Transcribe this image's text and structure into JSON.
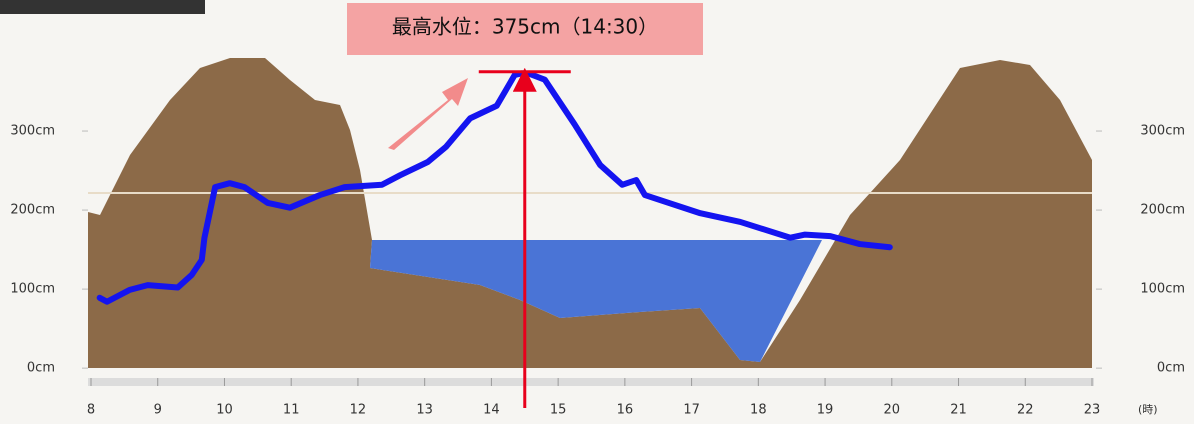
{
  "chart_data": {
    "type": "line",
    "annotation": "最高水位：375cm（14:30）",
    "x_unit_label": "(時)",
    "x": [
      8.13,
      8.24,
      8.58,
      8.85,
      9.3,
      9.51,
      9.66,
      9.7,
      9.86,
      10.08,
      10.3,
      10.65,
      10.98,
      11.43,
      11.8,
      12.36,
      12.63,
      13.05,
      13.32,
      13.68,
      14.08,
      14.35,
      14.46,
      14.58,
      14.8,
      15.25,
      15.63,
      15.96,
      16.17,
      16.3,
      17.13,
      17.73,
      18.48,
      18.7,
      19.08,
      19.52,
      19.97
    ],
    "values": [
      89,
      84,
      99,
      105,
      102,
      118,
      137,
      165,
      229,
      234,
      229,
      209,
      203,
      219,
      229,
      232,
      244,
      261,
      280,
      316,
      332,
      371,
      373,
      372,
      365,
      308,
      257,
      232,
      238,
      219,
      196,
      185,
      165,
      169,
      167,
      157,
      153
    ],
    "color": "#1414f0",
    "peak": {
      "x": 14.5,
      "y": 375,
      "color": "#e8001c"
    },
    "xlim": [
      8,
      23
    ],
    "xticks": [
      8,
      9,
      10,
      11,
      12,
      13,
      14,
      15,
      16,
      17,
      18,
      19,
      20,
      21,
      22,
      23
    ],
    "ylim": [
      -15,
      400
    ],
    "yticks": [
      {
        "value": 0,
        "label": "0cm"
      },
      {
        "value": 100,
        "label": "100cm"
      },
      {
        "value": 200,
        "label": "200cm"
      },
      {
        "value": 300,
        "label": "300cm"
      }
    ],
    "y2lim": [
      -15,
      400
    ],
    "y2ticks": [
      {
        "value": 0,
        "label": "0cm"
      },
      {
        "value": 100,
        "label": "100cm"
      },
      {
        "value": 200,
        "label": "200cm"
      },
      {
        "value": 300,
        "label": "300cm"
      }
    ]
  }
}
